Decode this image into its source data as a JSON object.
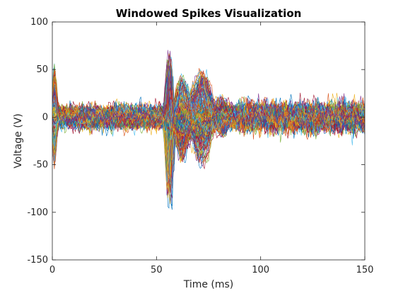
{
  "chart_data": {
    "type": "line",
    "title": "Windowed Spikes Visualization",
    "xlabel": "Time (ms)",
    "ylabel": "Voltage (V)",
    "xlim": [
      0,
      150
    ],
    "ylim": [
      -150,
      100
    ],
    "x_ticks": [
      0,
      50,
      100,
      150
    ],
    "y_ticks": [
      -150,
      -100,
      -50,
      0,
      50,
      100
    ],
    "x_tick_labels": [
      "0",
      "50",
      "100",
      "150"
    ],
    "y_tick_labels": [
      "-150",
      "-100",
      "-50",
      "0",
      "50",
      "100"
    ],
    "grid": false,
    "legend": "none",
    "series_count": 200,
    "series_colors": [
      "#0072BD",
      "#D95319",
      "#EDB120",
      "#7E2F8E",
      "#77AC30",
      "#4DBEEE",
      "#A2142F"
    ],
    "sampling": {
      "x_start": 0,
      "x_end": 150,
      "x_step": 0.5
    },
    "waveform_profile": {
      "noise_amplitude_uV_like_units": 9,
      "onset_transient": {
        "time": 1,
        "min": -60,
        "max": 45
      },
      "spike_peak": {
        "time": 56,
        "max": 93
      },
      "spike_trough": {
        "time": 57,
        "min": -110
      },
      "afterhyperpolarization": {
        "time_range": [
          65,
          80
        ],
        "max": 75,
        "min": -75
      },
      "late_noise_band": {
        "time_range": [
          90,
          150
        ],
        "max": 30,
        "min": -30
      }
    }
  }
}
